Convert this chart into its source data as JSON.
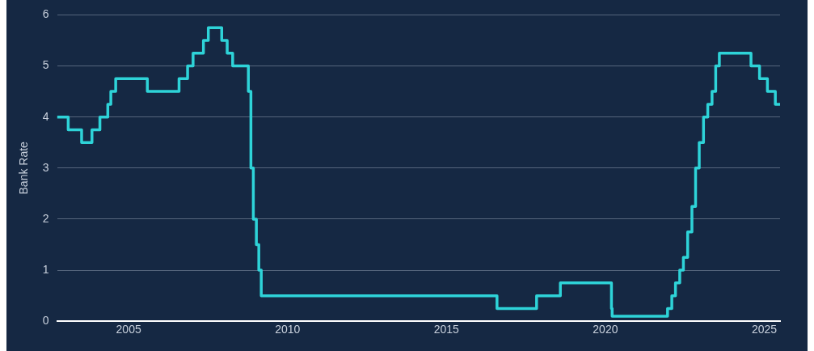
{
  "chart_data": {
    "type": "step",
    "ylabel": "Bank Rate",
    "x": [
      "2002-10",
      "2003-02-06",
      "2003-07-10",
      "2003-11-06",
      "2004-02-05",
      "2004-05-06",
      "2004-06-10",
      "2004-08-05",
      "2005-08-04",
      "2006-08-03",
      "2006-11-09",
      "2007-01-11",
      "2007-05-10",
      "2007-07-05",
      "2007-12-06",
      "2008-02-07",
      "2008-04-10",
      "2008-10-08",
      "2008-11-06",
      "2008-12-04",
      "2009-01-08",
      "2009-02-05",
      "2009-03-05",
      "2016-08-04",
      "2017-11-02",
      "2018-08-02",
      "2020-03-11",
      "2020-03-19",
      "2021-12-16",
      "2022-02-03",
      "2022-03-17",
      "2022-05-05",
      "2022-06-16",
      "2022-08-04",
      "2022-09-22",
      "2022-11-03",
      "2022-12-15",
      "2023-02-02",
      "2023-03-23",
      "2023-05-11",
      "2023-06-22",
      "2023-08-03",
      "2024-08-01",
      "2024-11-07",
      "2025-02-06",
      "2025-05-08",
      "2025-07"
    ],
    "series": [
      {
        "color": "#2ed3d8",
        "values": [
          4.0,
          3.75,
          3.5,
          3.75,
          4.0,
          4.25,
          4.5,
          4.75,
          4.5,
          4.75,
          5.0,
          5.25,
          5.5,
          5.75,
          5.5,
          5.25,
          5.0,
          4.5,
          3.0,
          2.0,
          1.5,
          1.0,
          0.5,
          0.25,
          0.5,
          0.75,
          0.25,
          0.1,
          0.25,
          0.5,
          0.75,
          1.0,
          1.25,
          1.75,
          2.25,
          3.0,
          3.5,
          4.0,
          4.25,
          4.5,
          5.0,
          5.25,
          5.0,
          4.75,
          4.5,
          4.25,
          4.25
        ]
      }
    ],
    "xlim": [
      "2002-10",
      "2025-07"
    ],
    "xticks": [
      {
        "value": "2005",
        "label": "2005"
      },
      {
        "value": "2010",
        "label": "2010"
      },
      {
        "value": "2015",
        "label": "2015"
      },
      {
        "value": "2020",
        "label": "2020"
      },
      {
        "value": "2025",
        "label": "2025"
      }
    ],
    "ylim": [
      0,
      6
    ],
    "yticks": [
      0,
      1,
      2,
      3,
      4,
      5,
      6
    ],
    "grid": "y",
    "legend": false,
    "marker": "none",
    "line_style": "solid"
  }
}
